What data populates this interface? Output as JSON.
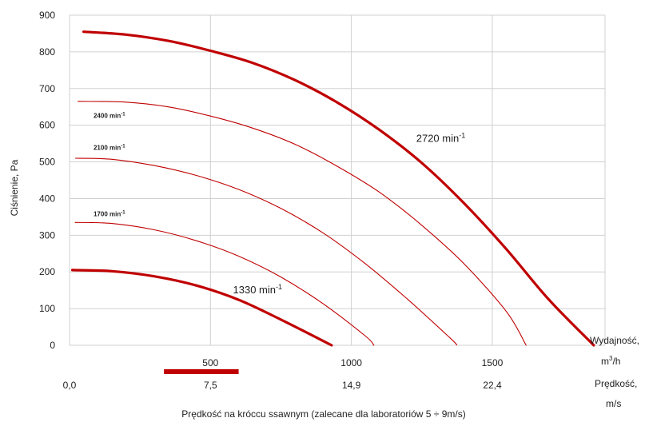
{
  "chart_data": {
    "type": "line",
    "ylabel": "Ciśnienie, Pa",
    "xlabel": "Prędkość na króccu ssawnym (zalecane dla laboratoriów 5 ÷ 9m/s)",
    "xlim": [
      0,
      1900
    ],
    "ylim": [
      0,
      900
    ],
    "y_ticks": [
      "0",
      "100",
      "200",
      "300",
      "400",
      "500",
      "600",
      "700",
      "800",
      "900"
    ],
    "grid": true,
    "flow_axis": {
      "label_line1": "Wydajność,",
      "label_line2_base": "m",
      "label_line2_sup": "3",
      "label_line2_rest": "/h",
      "ticks": [
        {
          "value": 500,
          "label": "500"
        },
        {
          "value": 1000,
          "label": "1000"
        },
        {
          "value": 1500,
          "label": "1500"
        }
      ]
    },
    "velocity_axis": {
      "label_line1": "Prędkość,",
      "label_line2": "m/s",
      "ticks": [
        {
          "value": 0,
          "label": "0,0"
        },
        {
          "value": 500,
          "label": "7,5"
        },
        {
          "value": 1000,
          "label": "14,9"
        },
        {
          "value": 1500,
          "label": "22,4"
        }
      ]
    },
    "recommended_range": {
      "from": 335,
      "to": 600,
      "color": "#c00000"
    },
    "series": [
      {
        "name": "2720 min",
        "name_sup": "-1",
        "bold": true,
        "label_style": "big",
        "label_at": [
          1230,
          555
        ],
        "points": [
          [
            50,
            855
          ],
          [
            200,
            847
          ],
          [
            350,
            830
          ],
          [
            500,
            803
          ],
          [
            650,
            770
          ],
          [
            800,
            723
          ],
          [
            950,
            662
          ],
          [
            1100,
            587
          ],
          [
            1250,
            497
          ],
          [
            1400,
            387
          ],
          [
            1550,
            262
          ],
          [
            1700,
            125
          ],
          [
            1860,
            0
          ]
        ]
      },
      {
        "name": "2400 min",
        "name_sup": "-1",
        "bold": false,
        "label_style": "small",
        "label_at": [
          85,
          620
        ],
        "points": [
          [
            30,
            665
          ],
          [
            200,
            663
          ],
          [
            350,
            650
          ],
          [
            500,
            625
          ],
          [
            650,
            592
          ],
          [
            800,
            548
          ],
          [
            950,
            488
          ],
          [
            1100,
            417
          ],
          [
            1250,
            327
          ],
          [
            1400,
            222
          ],
          [
            1550,
            92
          ],
          [
            1620,
            0
          ]
        ]
      },
      {
        "name": "2100 min",
        "name_sup": "-1",
        "bold": false,
        "label_style": "small",
        "label_at": [
          85,
          533
        ]
      },
      {
        "name": "1700 min",
        "name_sup": "-1",
        "bold": false,
        "label_style": "small",
        "label_at": [
          85,
          352
        ],
        "points": [
          [
            20,
            335
          ],
          [
            150,
            332
          ],
          [
            300,
            315
          ],
          [
            450,
            285
          ],
          [
            600,
            243
          ],
          [
            750,
            186
          ],
          [
            900,
            113
          ],
          [
            1050,
            25
          ],
          [
            1080,
            0
          ]
        ]
      },
      {
        "name": "1330 min",
        "name_sup": "-1",
        "bold": true,
        "label_style": "big",
        "label_at": [
          580,
          142
        ],
        "points": [
          [
            10,
            205
          ],
          [
            150,
            202
          ],
          [
            300,
            188
          ],
          [
            450,
            163
          ],
          [
            600,
            124
          ],
          [
            750,
            70
          ],
          [
            930,
            0
          ]
        ]
      }
    ],
    "line_color": "#c00000"
  }
}
